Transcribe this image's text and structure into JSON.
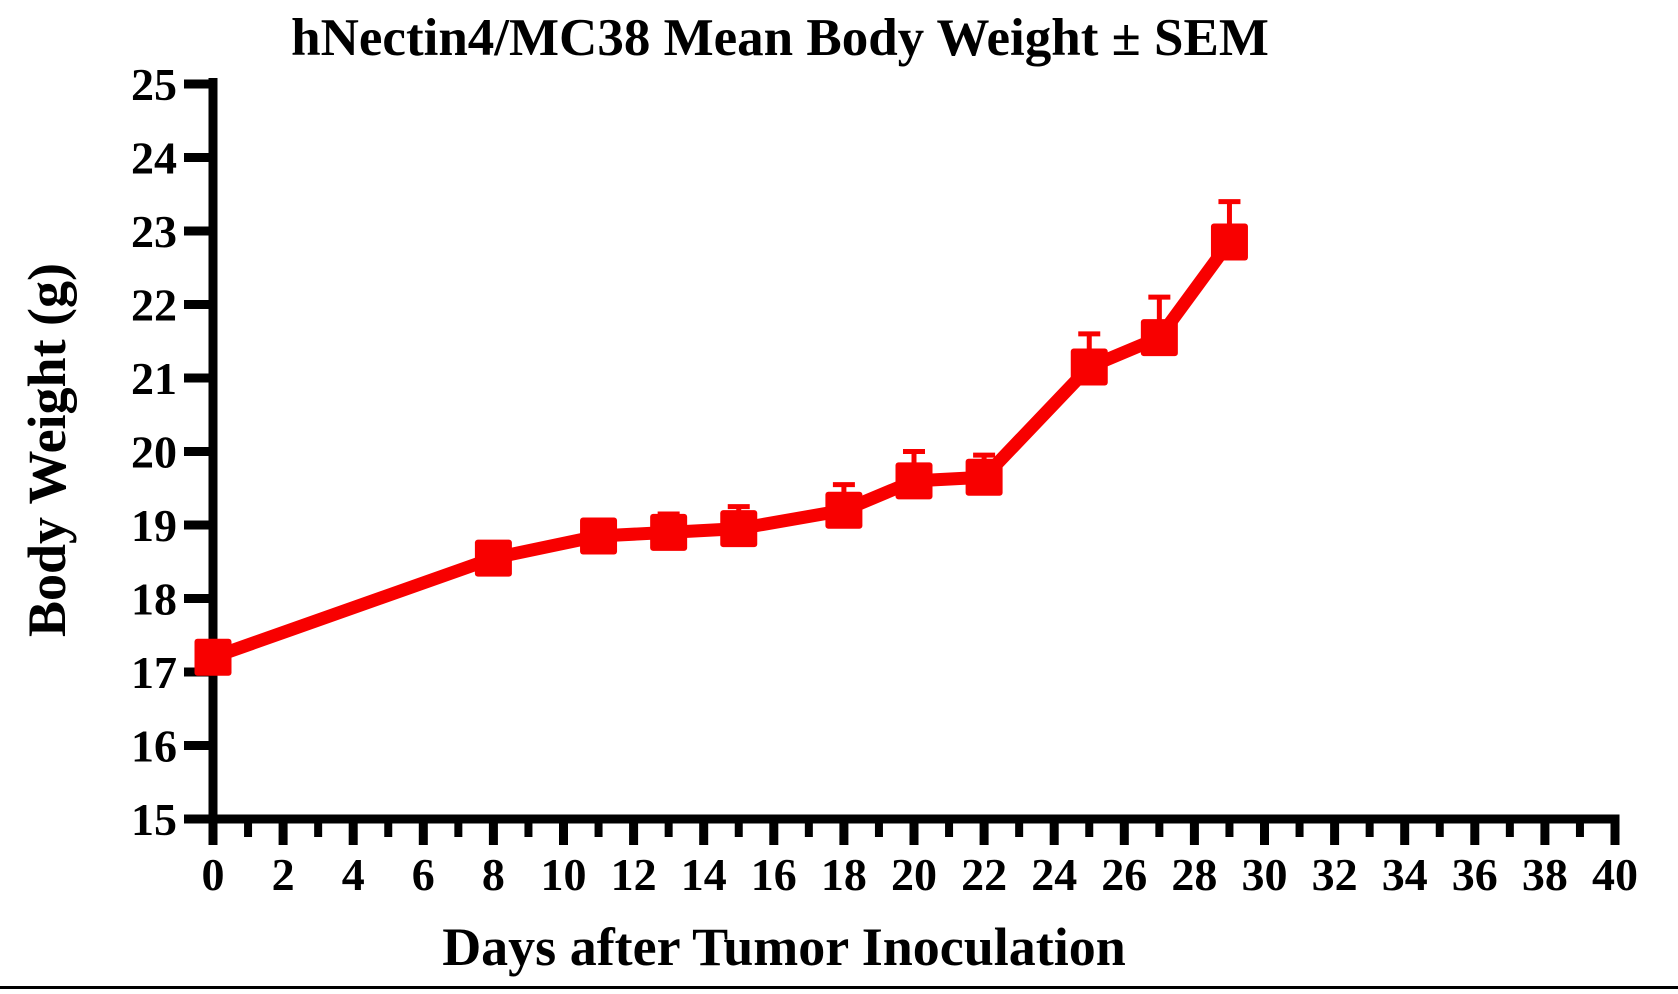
{
  "page": {
    "background": "#ffffff",
    "bottom_rule_color": "#000000"
  },
  "chart_data": {
    "type": "line",
    "title": "hNectin4/MC38 Mean Body Weight ± SEM",
    "xlabel": "Days after Tumor Inoculation",
    "ylabel": "Body Weight (g)",
    "xlim": [
      0,
      40
    ],
    "ylim": [
      15,
      25
    ],
    "x_major_ticks": [
      0,
      2,
      4,
      6,
      8,
      10,
      12,
      14,
      16,
      18,
      20,
      22,
      24,
      26,
      28,
      30,
      32,
      34,
      36,
      38,
      40
    ],
    "x_minor_tick_step": 1,
    "y_ticks": [
      15,
      16,
      17,
      18,
      19,
      20,
      21,
      22,
      23,
      24,
      25
    ],
    "grid": false,
    "legend_position": "none",
    "axis_color": "#000000",
    "series": [
      {
        "name": "hNectin4/MC38 Mean Body Weight",
        "color": "#f80000",
        "marker": "square",
        "x": [
          0,
          8,
          11,
          13,
          15,
          18,
          20,
          22,
          25,
          27,
          29
        ],
        "y": [
          17.2,
          18.55,
          18.85,
          18.9,
          18.95,
          19.2,
          19.6,
          19.65,
          21.15,
          21.55,
          22.85
        ],
        "sem": [
          0,
          0,
          0,
          0.25,
          0.3,
          0.35,
          0.4,
          0.3,
          0.45,
          0.55,
          0.55
        ]
      }
    ]
  }
}
